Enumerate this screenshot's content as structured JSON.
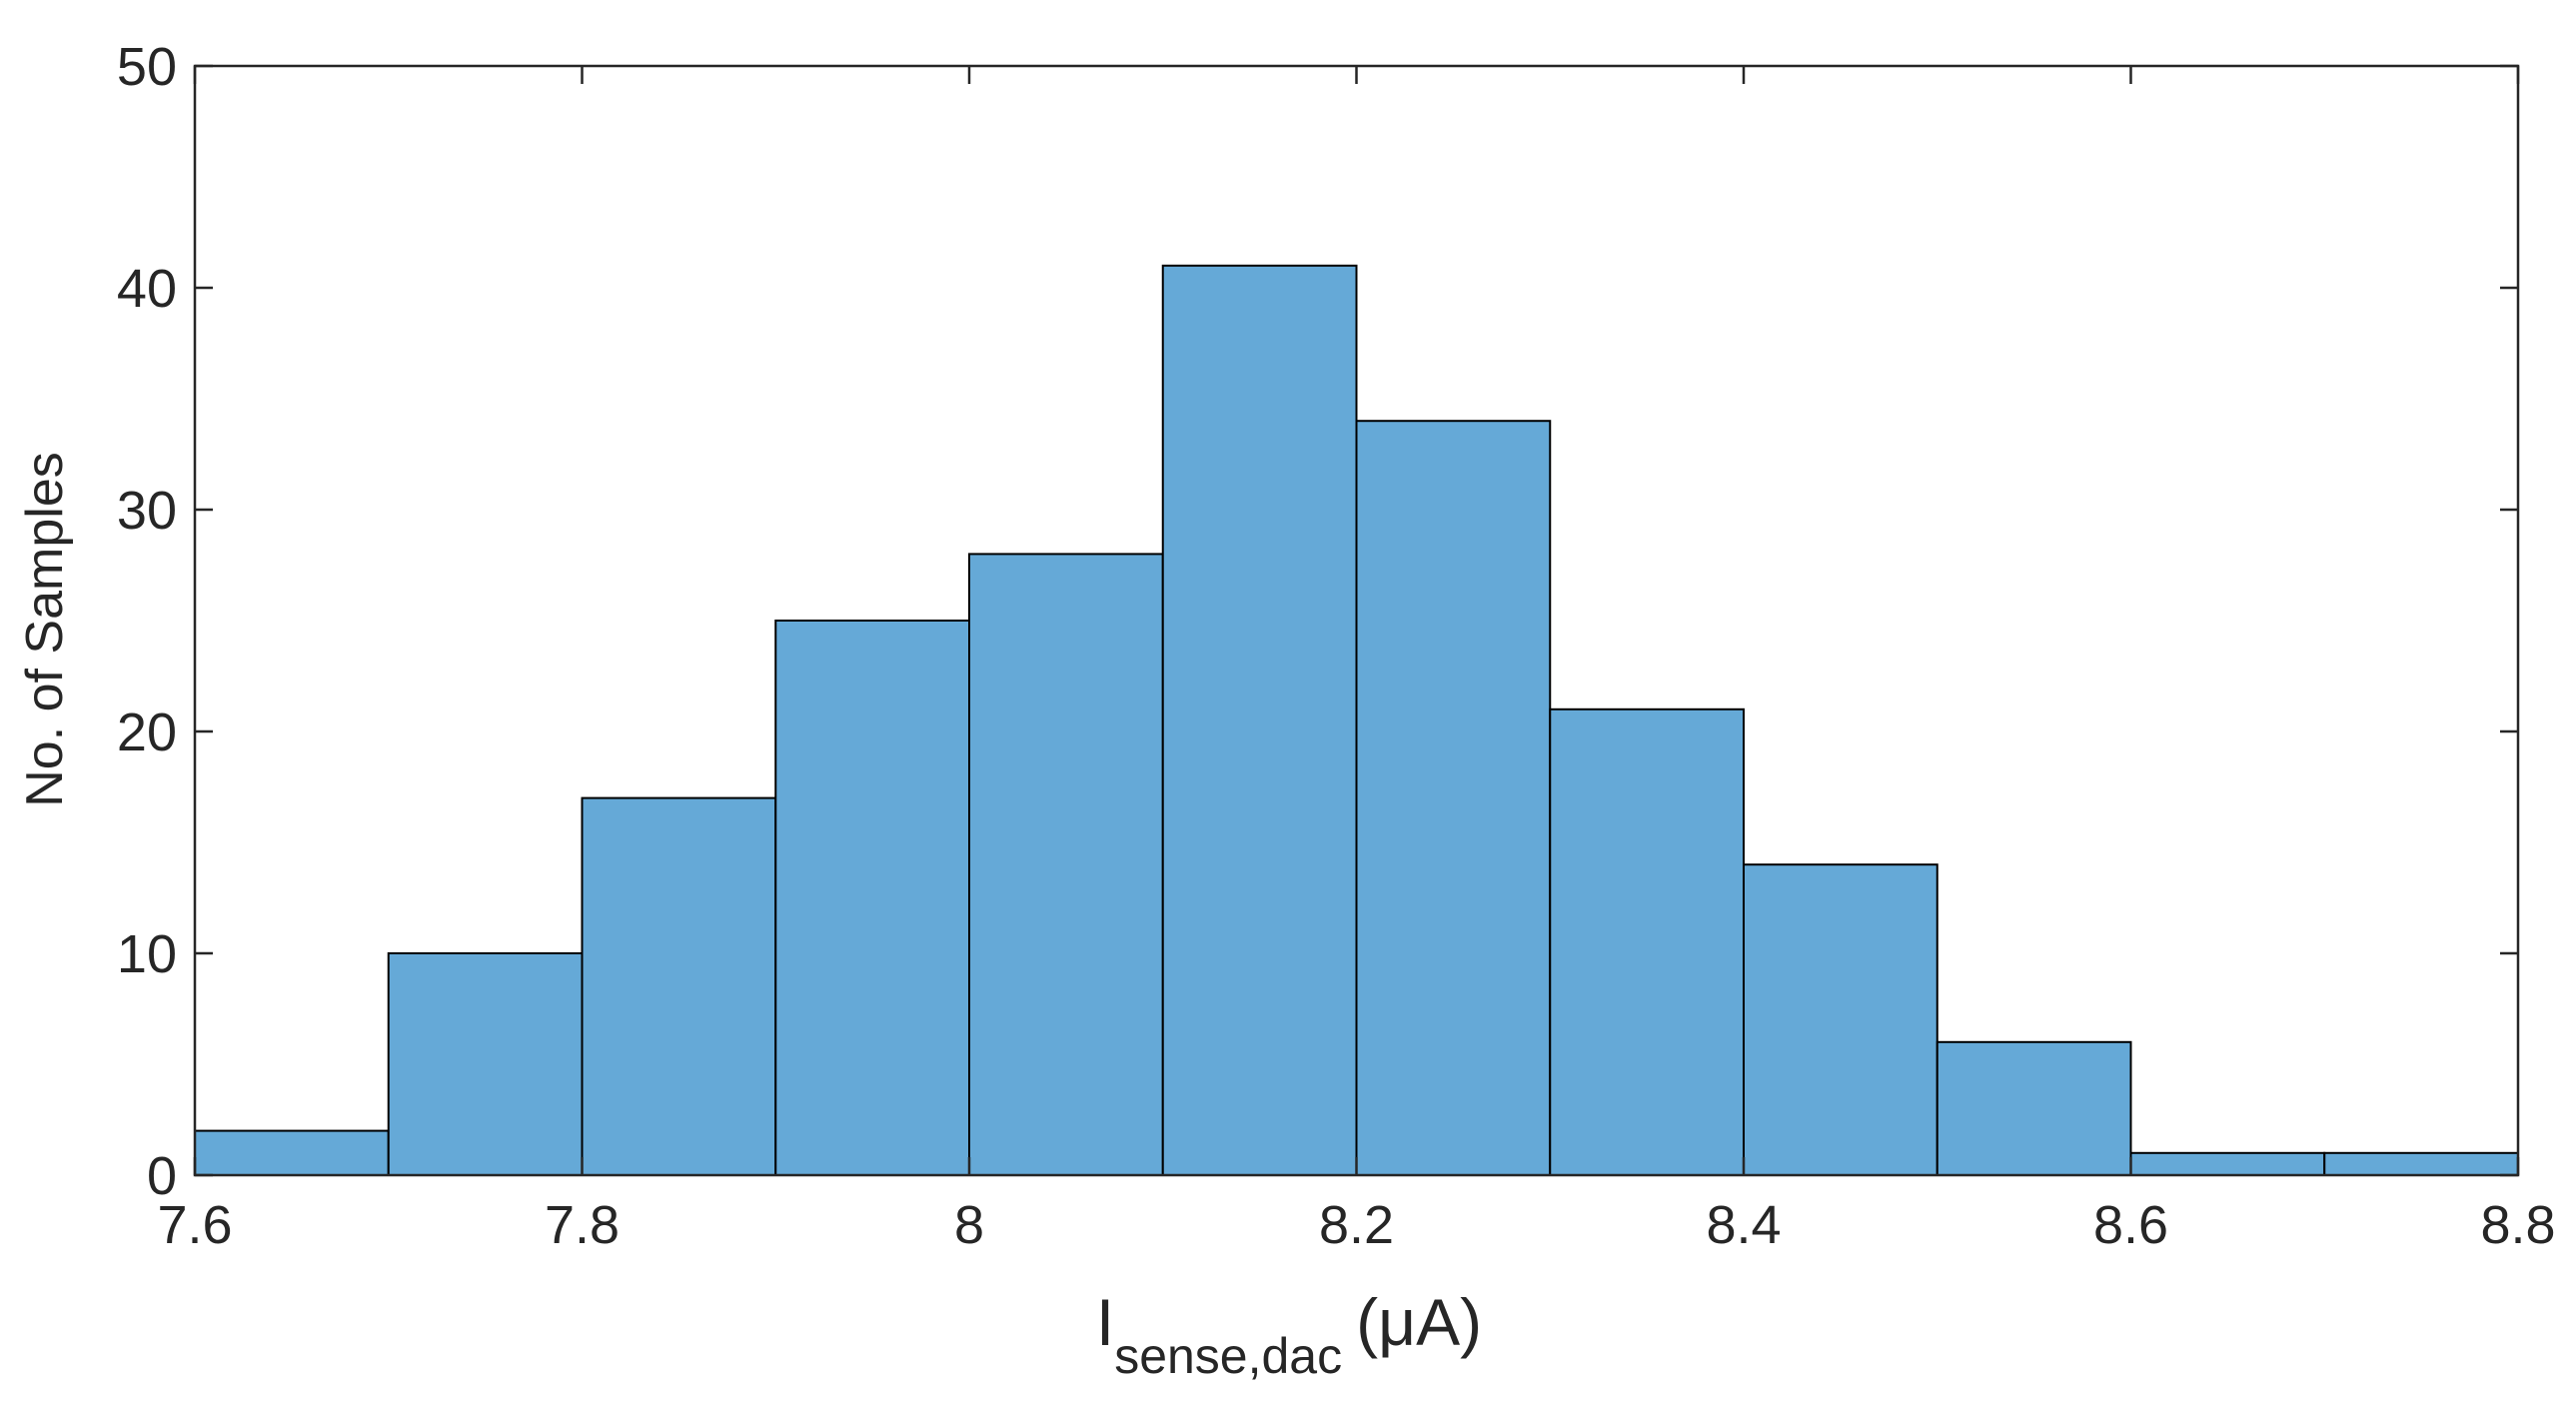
{
  "chart_data": {
    "type": "bar",
    "subtype": "histogram",
    "bin_edges": [
      7.6,
      7.7,
      7.8,
      7.9,
      8.0,
      8.1,
      8.2,
      8.3,
      8.4,
      8.5,
      8.6,
      8.7,
      8.8
    ],
    "values": [
      2,
      10,
      17,
      25,
      28,
      41,
      34,
      21,
      14,
      6,
      1,
      1
    ],
    "xlabel": {
      "main": "I",
      "subscript": "sense,dac",
      "unit": "(μA)"
    },
    "ylabel": "No. of Samples",
    "xlim": [
      7.6,
      8.8
    ],
    "ylim": [
      0,
      50
    ],
    "xticks": [
      7.6,
      7.8,
      8.0,
      8.2,
      8.4,
      8.6,
      8.8
    ],
    "xtick_labels": [
      "7.6",
      "7.8",
      "8",
      "8.2",
      "8.4",
      "8.6",
      "8.8"
    ],
    "yticks": [
      0,
      10,
      20,
      30,
      40,
      50
    ],
    "ytick_labels": [
      "0",
      "10",
      "20",
      "30",
      "40",
      "50"
    ],
    "grid": false,
    "bar_color": "#65a9d7",
    "edge_color": "#000000"
  }
}
